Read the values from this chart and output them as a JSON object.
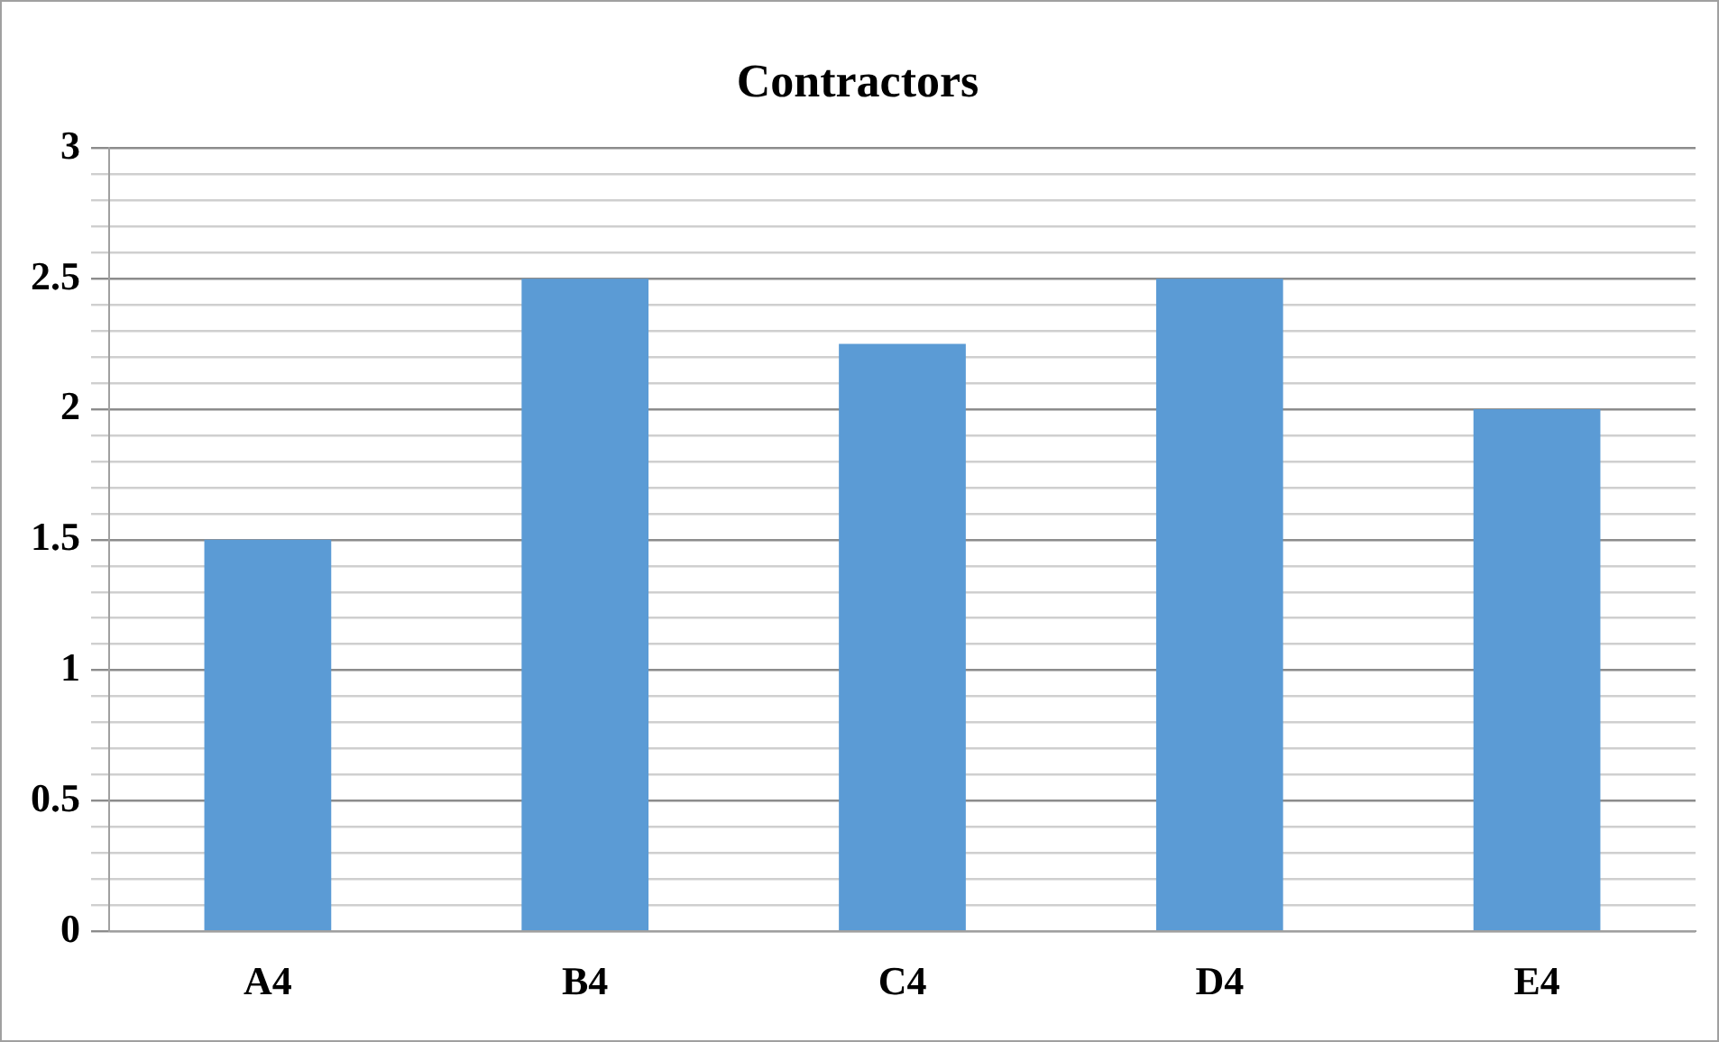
{
  "chart_data": {
    "type": "bar",
    "title": "Contractors",
    "categories": [
      "A4",
      "B4",
      "C4",
      "D4",
      "E4"
    ],
    "values": [
      1.5,
      2.5,
      2.25,
      2.5,
      2
    ],
    "color": "#5b9bd5",
    "ylim": [
      0,
      3
    ],
    "yticks": [
      0,
      {
        "value": 0.1,
        "label": null
      },
      {
        "value": 0.2,
        "label": null
      },
      {
        "value": 0.3,
        "label": null
      },
      {
        "value": 0.4,
        "label": null
      },
      0.5,
      {
        "value": 0.6,
        "label": null
      },
      {
        "value": 0.7,
        "label": null
      },
      {
        "value": 0.8,
        "label": null
      },
      {
        "value": 0.9,
        "label": null
      },
      1,
      {
        "value": 1.1,
        "label": null
      },
      {
        "value": 1.2,
        "label": null
      },
      {
        "value": 1.3,
        "label": null
      },
      {
        "value": 1.4,
        "label": null
      },
      1.5,
      {
        "value": 1.6,
        "label": null
      },
      {
        "value": 1.7,
        "label": null
      },
      {
        "value": 1.8,
        "label": null
      },
      {
        "value": 1.9,
        "label": null
      },
      2,
      {
        "value": 2.1,
        "label": null
      },
      {
        "value": 2.2,
        "label": null
      },
      {
        "value": 2.3,
        "label": null
      },
      {
        "value": 2.4,
        "label": null
      },
      2.5,
      {
        "value": 2.6,
        "label": null
      },
      {
        "value": 2.7,
        "label": null
      },
      {
        "value": 2.8,
        "label": null
      },
      {
        "value": 2.9,
        "label": null
      },
      3
    ],
    "grid": "y",
    "legend": false
  }
}
